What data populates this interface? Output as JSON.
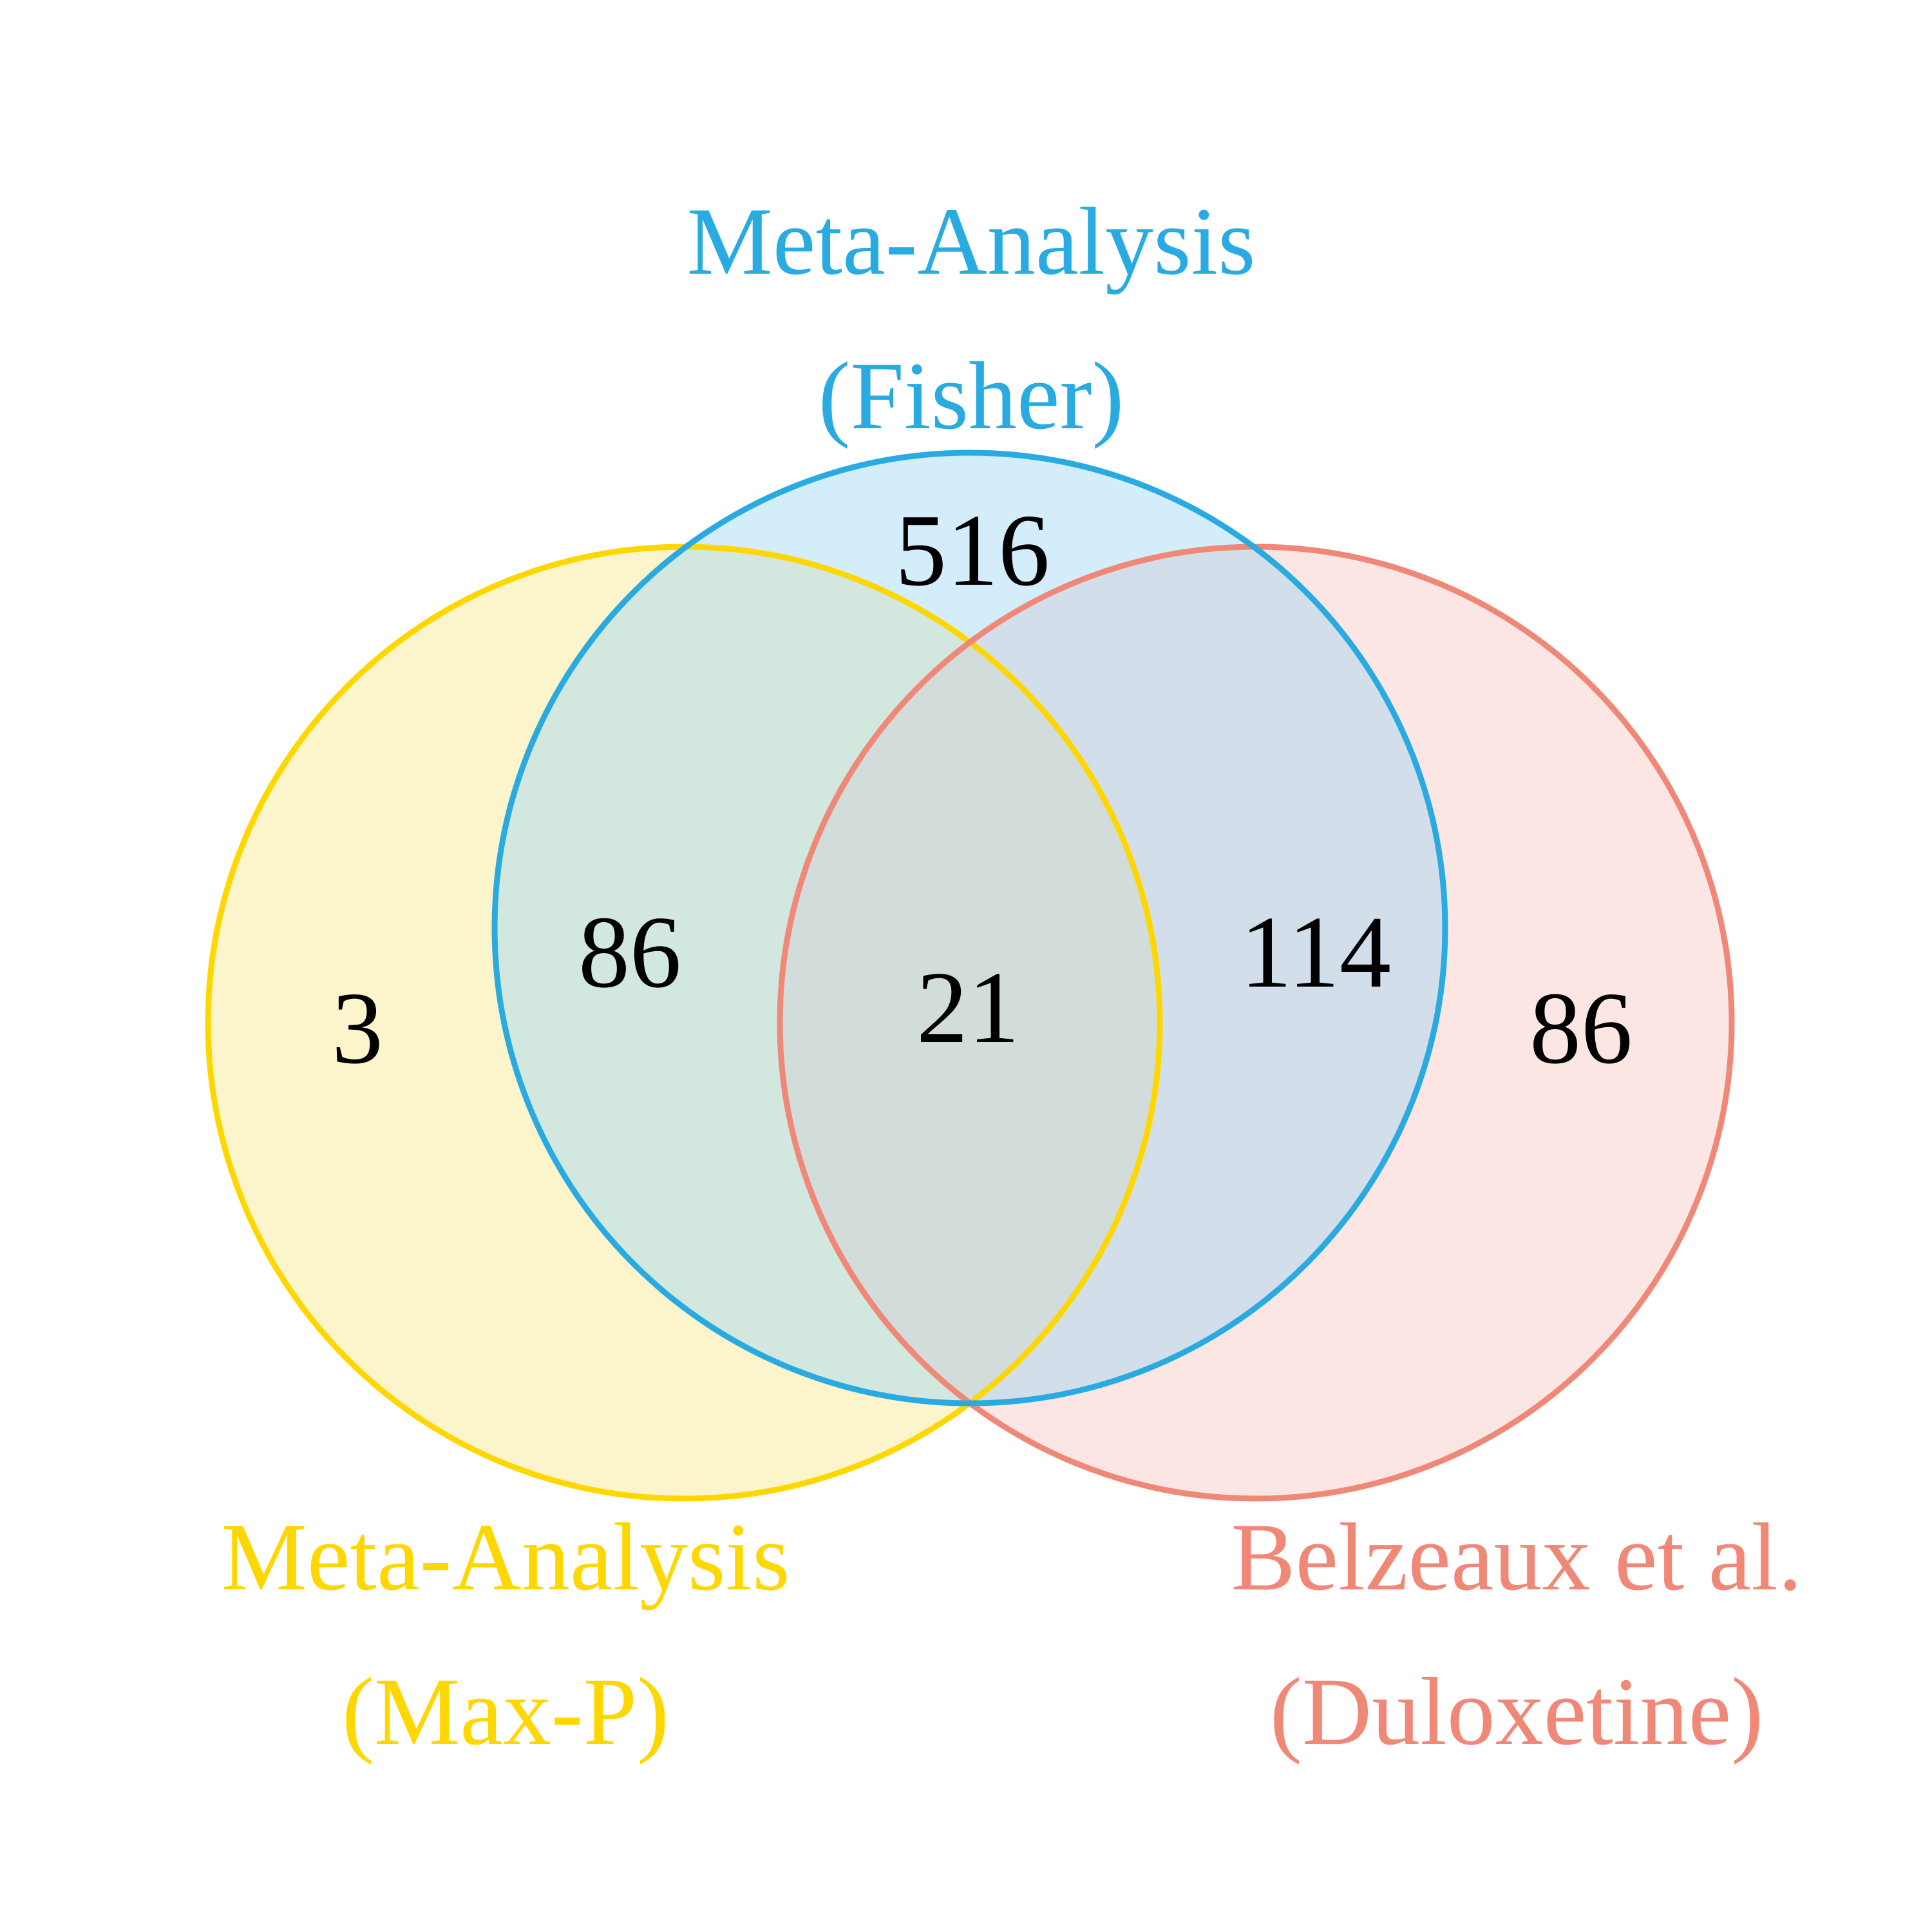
{
  "sets": {
    "fisher": {
      "label_line1": "Meta-Analysis",
      "label_line2": "(Fisher)",
      "color": "#29ABE2",
      "fill": "#9FD8F5"
    },
    "maxp": {
      "label_line1": "Meta-Analysis",
      "label_line2": "(Max-P)",
      "color": "#FFD700",
      "fill": "#F8E680"
    },
    "belzeaux": {
      "label_line1": "Belzeaux et al.",
      "label_line2": "(Duloxetine)",
      "color": "#F08878",
      "fill": "#F8C8C0"
    }
  },
  "regions": {
    "maxp_only": "3",
    "fisher_only": "516",
    "belzeaux_only": "86",
    "maxp_fisher": "86",
    "fisher_belzeaux": "114",
    "all_three": "21"
  }
}
